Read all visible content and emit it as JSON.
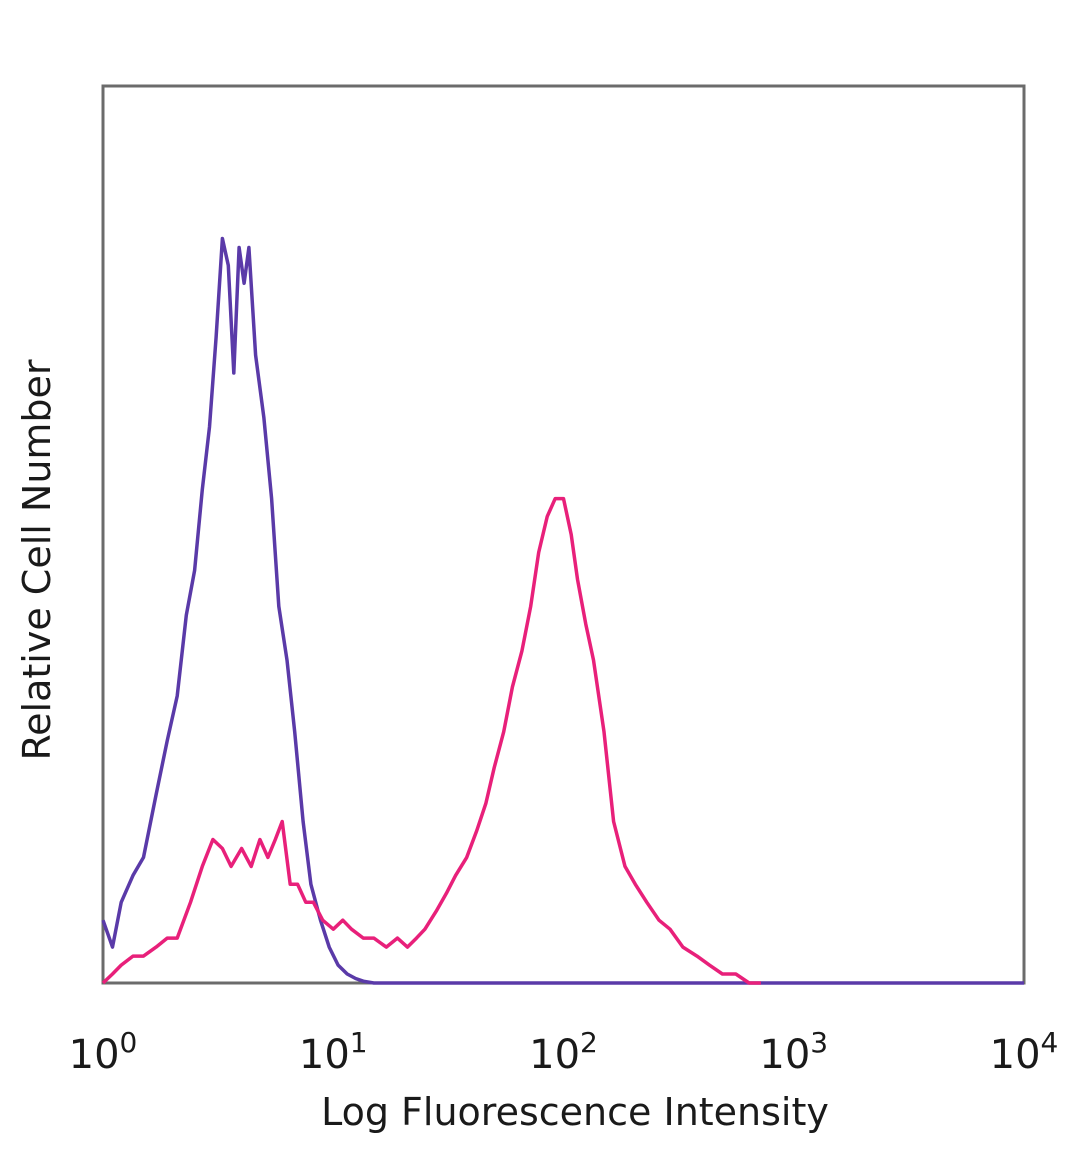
{
  "chart_data": {
    "type": "line",
    "chart_subtype": "flow cytometry histogram overlay",
    "xlabel": "Log Fluorescence Intensity",
    "ylabel": "Relative Cell Number",
    "x_scale": "log",
    "xlim": [
      1,
      10000
    ],
    "ylim": [
      0,
      100
    ],
    "x_ticks": [
      {
        "base": "10",
        "exp": "0",
        "value": 1
      },
      {
        "base": "10",
        "exp": "1",
        "value": 10
      },
      {
        "base": "10",
        "exp": "2",
        "value": 100
      },
      {
        "base": "10",
        "exp": "3",
        "value": 1000
      },
      {
        "base": "10",
        "exp": "4",
        "value": 10000
      }
    ],
    "y_ticks_shown": false,
    "grid": false,
    "legend": "none",
    "series": [
      {
        "color": "#5a3aa8",
        "x": [
          1.0,
          1.1,
          1.2,
          1.35,
          1.5,
          1.7,
          1.9,
          2.1,
          2.3,
          2.5,
          2.7,
          2.9,
          3.1,
          3.3,
          3.5,
          3.7,
          3.9,
          4.1,
          4.3,
          4.6,
          5.0,
          5.4,
          5.8,
          6.3,
          6.8,
          7.4,
          8.0,
          8.8,
          9.6,
          10.5,
          11.5,
          12.5,
          13.5,
          15,
          20,
          50,
          100,
          1000,
          10000
        ],
        "y": [
          7,
          4,
          9,
          12,
          14,
          21,
          27,
          32,
          41,
          46,
          55,
          62,
          72,
          83,
          80,
          68,
          82,
          78,
          82,
          70,
          63,
          54,
          42,
          36,
          28,
          18,
          11,
          7,
          4,
          2,
          1,
          0.5,
          0.2,
          0,
          0,
          0,
          0,
          0,
          0
        ]
      },
      {
        "color": "#e8207a",
        "x": [
          1.0,
          1.1,
          1.2,
          1.35,
          1.5,
          1.7,
          1.9,
          2.1,
          2.4,
          2.7,
          3.0,
          3.3,
          3.6,
          4.0,
          4.4,
          4.8,
          5.2,
          5.6,
          6.0,
          6.5,
          7.0,
          7.6,
          8.2,
          9.0,
          10,
          11,
          12,
          13.5,
          15,
          17,
          19,
          21,
          23,
          25,
          28,
          31,
          34,
          38,
          42,
          46,
          50,
          55,
          60,
          66,
          72,
          78,
          85,
          92,
          100,
          108,
          115,
          125,
          135,
          150,
          165,
          185,
          205,
          230,
          260,
          290,
          330,
          380,
          430,
          490,
          560,
          640,
          720
        ],
        "y": [
          0,
          1,
          2,
          3,
          3,
          4,
          5,
          5,
          9,
          13,
          16,
          15,
          13,
          15,
          13,
          16,
          14,
          16,
          18,
          11,
          11,
          9,
          9,
          7,
          6,
          7,
          6,
          5,
          5,
          4,
          5,
          4,
          5,
          6,
          8,
          10,
          12,
          14,
          17,
          20,
          24,
          28,
          33,
          37,
          42,
          48,
          52,
          54,
          54,
          50,
          45,
          40,
          36,
          28,
          18,
          13,
          11,
          9,
          7,
          6,
          4,
          3,
          2,
          1,
          1,
          0,
          0
        ]
      }
    ]
  }
}
